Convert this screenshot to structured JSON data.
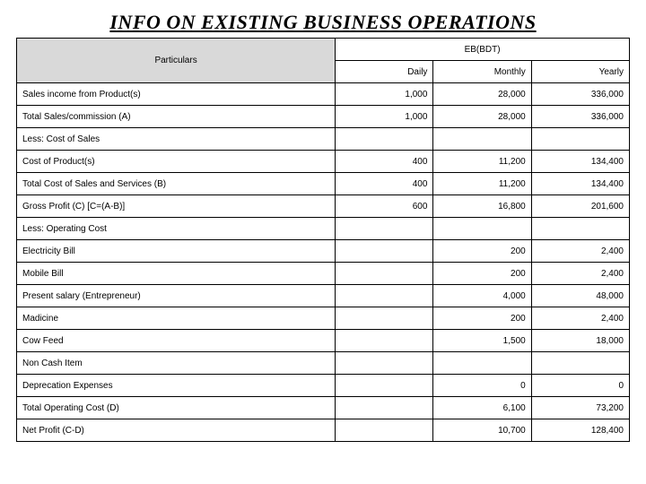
{
  "title": "INFO ON EXISTING BUSINESS OPERATIONS",
  "headers": {
    "particulars": "Particulars",
    "currency": "EB(BDT)",
    "daily": "Daily",
    "monthly": "Monthly",
    "yearly": "Yearly"
  },
  "rows": [
    {
      "label": "Sales income from Product(s)",
      "daily": "1,000",
      "monthly": "28,000",
      "yearly": "336,000"
    },
    {
      "label": "Total Sales/commission (A)",
      "daily": "1,000",
      "monthly": "28,000",
      "yearly": "336,000"
    },
    {
      "label": "Less: Cost of Sales",
      "daily": "",
      "monthly": "",
      "yearly": ""
    },
    {
      "label": "Cost of Product(s)",
      "daily": "400",
      "monthly": "11,200",
      "yearly": "134,400"
    },
    {
      "label": "Total Cost of Sales and Services (B)",
      "daily": "400",
      "monthly": "11,200",
      "yearly": "134,400"
    },
    {
      "label": "Gross Profit (C) [C=(A-B)]",
      "daily": "600",
      "monthly": "16,800",
      "yearly": "201,600"
    },
    {
      "label": "Less: Operating Cost",
      "daily": "",
      "monthly": "",
      "yearly": ""
    },
    {
      "label": "Electricity Bill",
      "daily": "",
      "monthly": "200",
      "yearly": "2,400"
    },
    {
      "label": "Mobile Bill",
      "daily": "",
      "monthly": "200",
      "yearly": "2,400"
    },
    {
      "label": "Present salary (Entrepreneur)",
      "daily": "",
      "monthly": "4,000",
      "yearly": "48,000"
    },
    {
      "label": "Madicine",
      "daily": "",
      "monthly": "200",
      "yearly": "2,400"
    },
    {
      "label": "Cow Feed",
      "daily": "",
      "monthly": "1,500",
      "yearly": "18,000"
    },
    {
      "label": "Non Cash Item",
      "daily": "",
      "monthly": "",
      "yearly": ""
    },
    {
      "label": "Deprecation Expenses",
      "daily": "",
      "monthly": "0",
      "yearly": "0"
    },
    {
      "label": "Total Operating Cost (D)",
      "daily": "",
      "monthly": "6,100",
      "yearly": "73,200"
    },
    {
      "label": "Net Profit (C-D)",
      "daily": "",
      "monthly": "10,700",
      "yearly": "128,400"
    }
  ],
  "styling": {
    "title_font": "Times New Roman Italic Bold",
    "title_fontsize": 22,
    "body_font": "Arial",
    "body_fontsize": 10,
    "header_bg": "#d9d9d9",
    "border_color": "#000000",
    "background_color": "#ffffff"
  }
}
